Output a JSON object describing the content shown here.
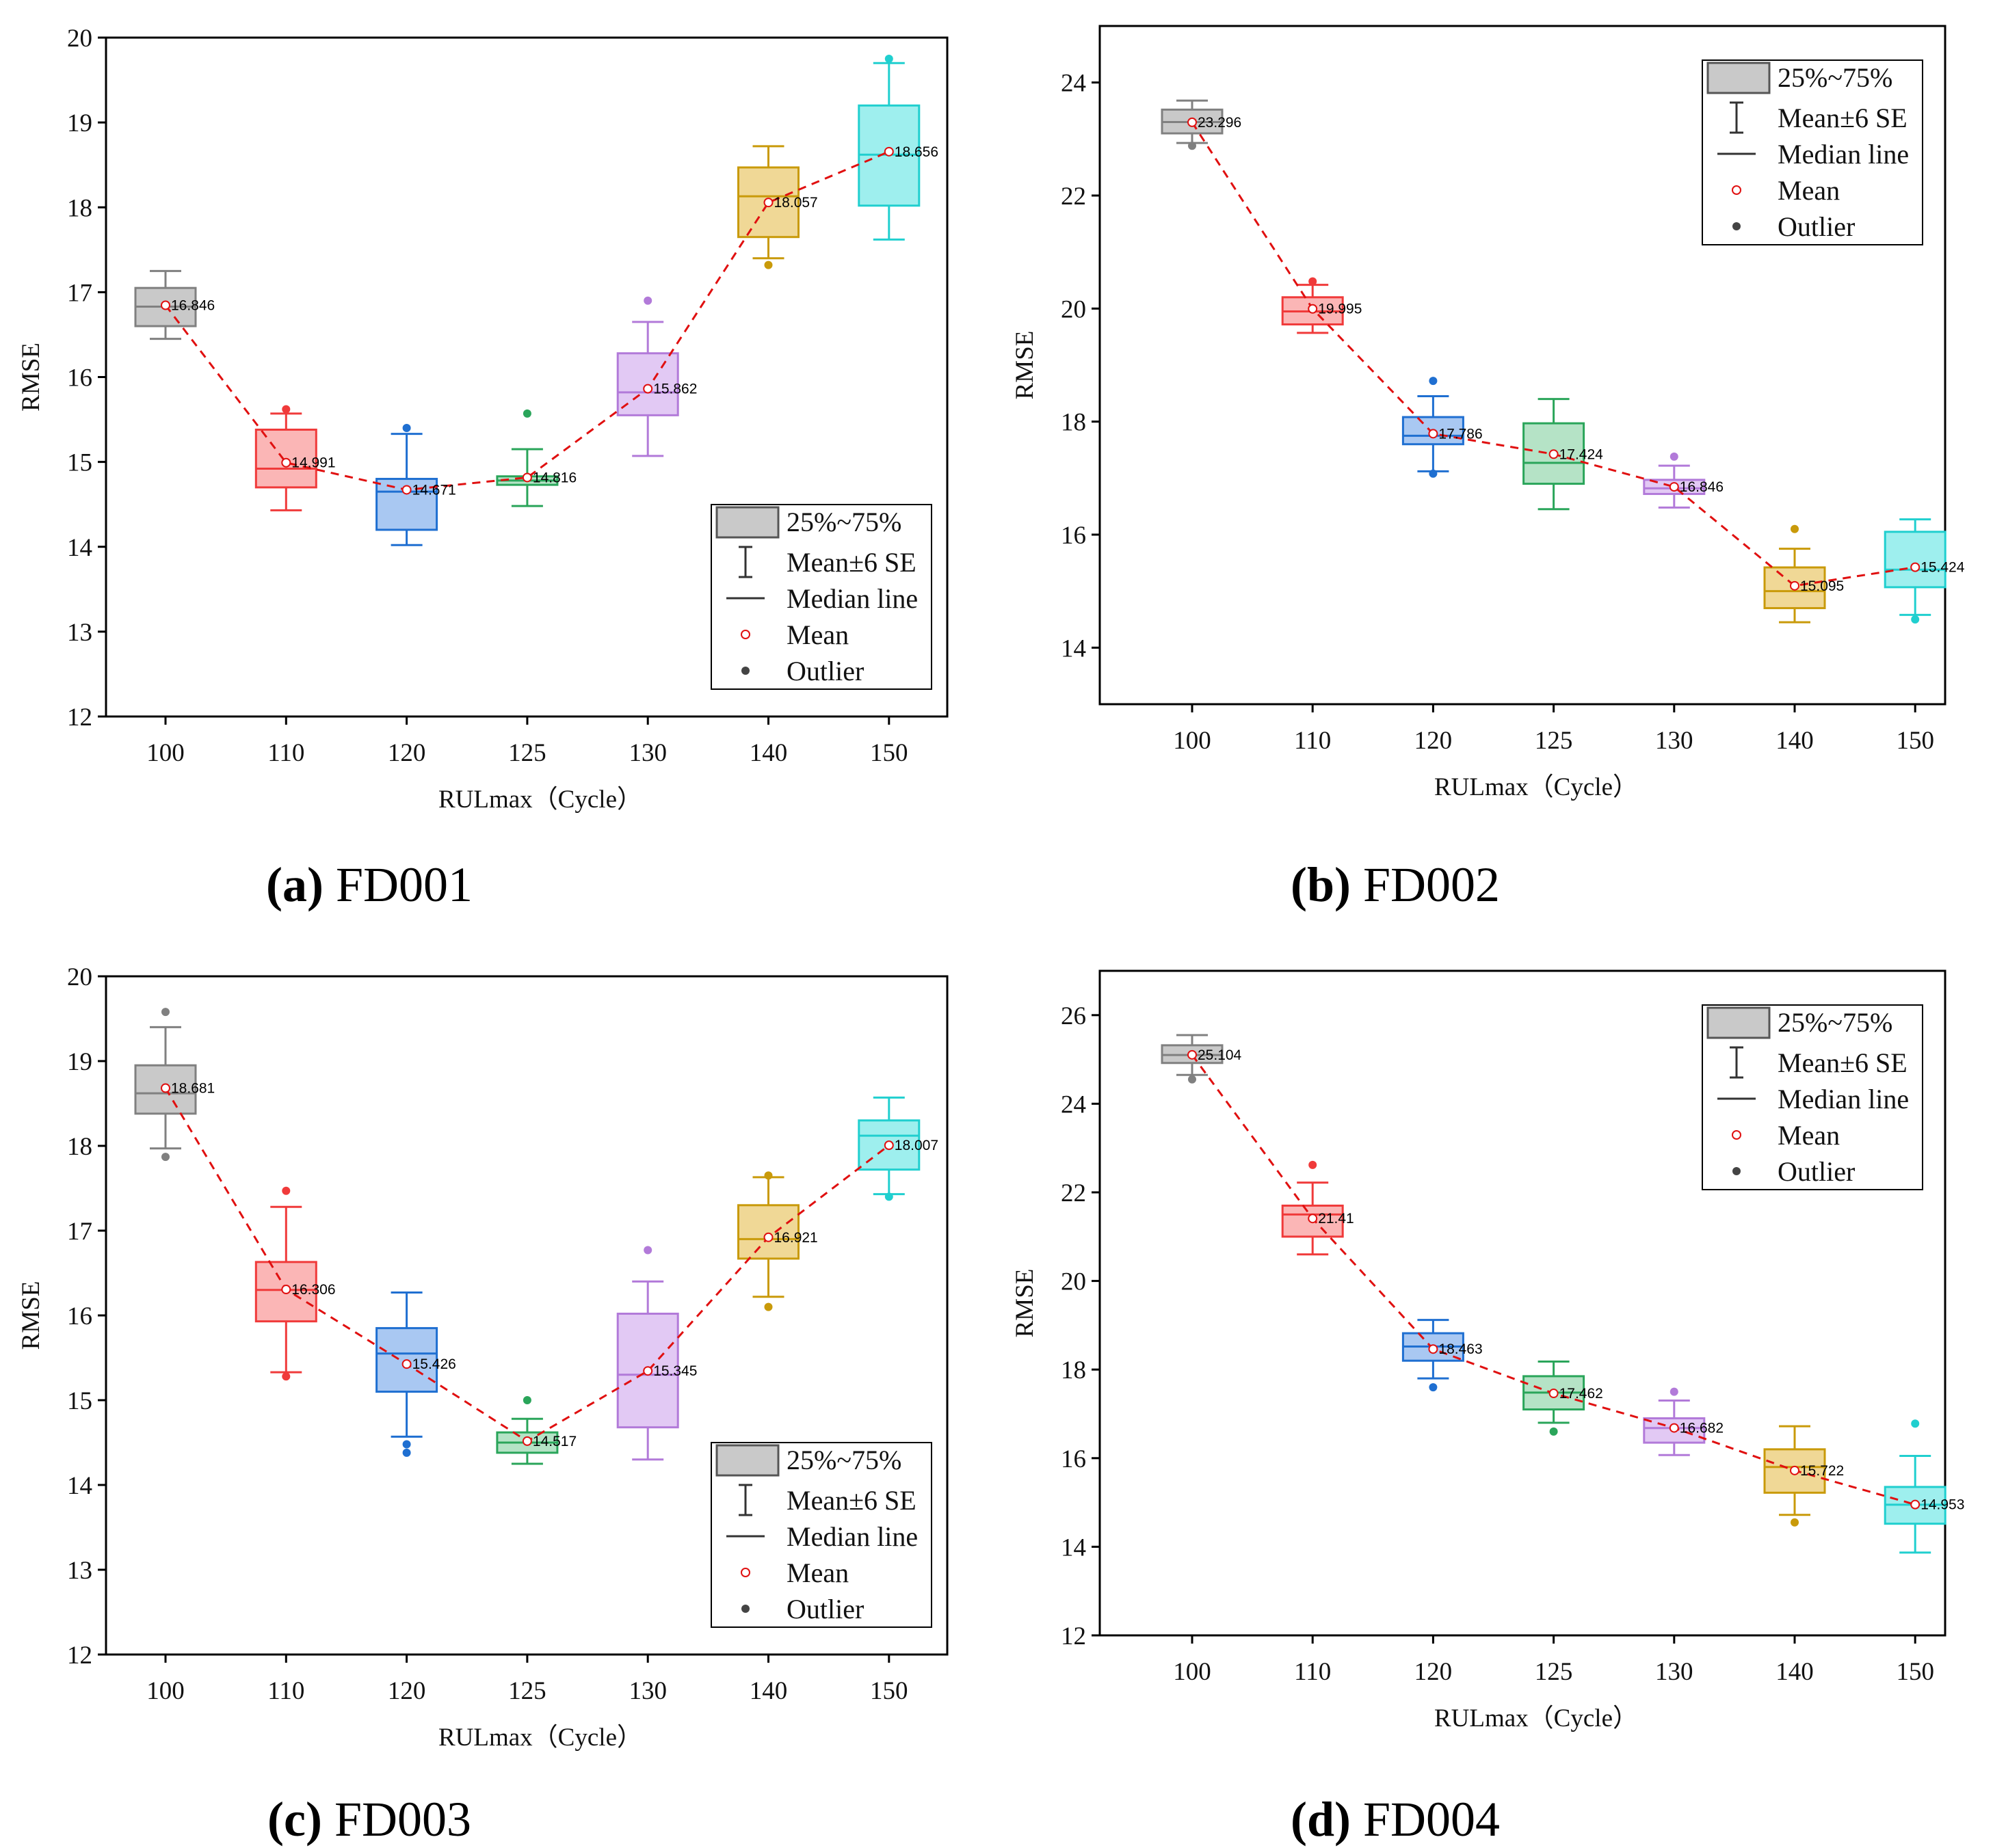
{
  "figure": {
    "legend_items": [
      {
        "key": "box",
        "label": "25%~75%"
      },
      {
        "key": "whisker",
        "label": "Mean±6 SE"
      },
      {
        "key": "median",
        "label": "Median line"
      },
      {
        "key": "mean",
        "label": "Mean"
      },
      {
        "key": "outlier",
        "label": "Outlier"
      }
    ],
    "colors": [
      "#808080",
      "#f03a3a",
      "#1f6fd1",
      "#2aa55a",
      "#b27ad9",
      "#c99a0a",
      "#20cfcf"
    ],
    "fills": [
      "#c9c9c9",
      "#fbb6b6",
      "#a9c8f2",
      "#b5e3c6",
      "#e2c9f4",
      "#f0d896",
      "#9eefee"
    ],
    "mean_line_color": "#e01010"
  },
  "chart_data": [
    {
      "type": "box",
      "id": "a",
      "caption_letter": "(a)",
      "caption_name": "FD001",
      "title": "",
      "xlabel": "RULmax（Cycle）",
      "ylabel": "RMSE",
      "ylim": [
        12,
        20
      ],
      "yticks": [
        "12",
        "13",
        "14",
        "15",
        "16",
        "17",
        "18",
        "19",
        "20"
      ],
      "legend_position": "bottom-right",
      "categories": [
        "100",
        "110",
        "120",
        "125",
        "130",
        "140",
        "150"
      ],
      "boxes": [
        {
          "whisker_low": 16.45,
          "q1": 16.6,
          "median": 16.83,
          "q3": 17.05,
          "whisker_high": 17.25,
          "mean": 16.846,
          "mean_label": "16.846",
          "outliers": []
        },
        {
          "whisker_low": 14.43,
          "q1": 14.7,
          "median": 14.92,
          "q3": 15.38,
          "whisker_high": 15.57,
          "mean": 14.991,
          "mean_label": "14.991",
          "outliers": [
            15.62
          ]
        },
        {
          "whisker_low": 14.02,
          "q1": 14.2,
          "median": 14.65,
          "q3": 14.8,
          "whisker_high": 15.33,
          "mean": 14.671,
          "mean_label": "14.671",
          "outliers": [
            15.4
          ]
        },
        {
          "whisker_low": 14.48,
          "q1": 14.73,
          "median": 14.78,
          "q3": 14.83,
          "whisker_high": 15.15,
          "mean": 14.816,
          "mean_label": "14.816",
          "outliers": [
            15.57
          ]
        },
        {
          "whisker_low": 15.07,
          "q1": 15.55,
          "median": 15.82,
          "q3": 16.28,
          "whisker_high": 16.65,
          "mean": 15.862,
          "mean_label": "15.862",
          "outliers": [
            16.9
          ]
        },
        {
          "whisker_low": 17.4,
          "q1": 17.65,
          "median": 18.13,
          "q3": 18.47,
          "whisker_high": 18.72,
          "mean": 18.057,
          "mean_label": "18.057",
          "outliers": [
            17.32
          ]
        },
        {
          "whisker_low": 17.62,
          "q1": 18.02,
          "median": 18.62,
          "q3": 19.2,
          "whisker_high": 19.7,
          "mean": 18.656,
          "mean_label": "18.656",
          "outliers": [
            19.75
          ]
        }
      ]
    },
    {
      "type": "box",
      "id": "b",
      "caption_letter": "(b)",
      "caption_name": "FD002",
      "title": "",
      "xlabel": "RULmax（Cycle）",
      "ylabel": "RMSE",
      "ylim": [
        13,
        25
      ],
      "yticks": [
        "14",
        "16",
        "18",
        "20",
        "22",
        "24"
      ],
      "legend_position": "top-right",
      "categories": [
        "100",
        "110",
        "120",
        "125",
        "130",
        "140",
        "150"
      ],
      "boxes": [
        {
          "whisker_low": 22.93,
          "q1": 23.1,
          "median": 23.3,
          "q3": 23.52,
          "whisker_high": 23.68,
          "mean": 23.296,
          "mean_label": "23.296",
          "outliers": [
            22.88
          ]
        },
        {
          "whisker_low": 19.57,
          "q1": 19.72,
          "median": 19.95,
          "q3": 20.2,
          "whisker_high": 20.42,
          "mean": 19.995,
          "mean_label": "19.995",
          "outliers": [
            20.48
          ]
        },
        {
          "whisker_low": 17.12,
          "q1": 17.6,
          "median": 17.75,
          "q3": 18.08,
          "whisker_high": 18.45,
          "mean": 17.786,
          "mean_label": "17.786",
          "outliers": [
            18.72,
            17.08
          ]
        },
        {
          "whisker_low": 16.45,
          "q1": 16.9,
          "median": 17.27,
          "q3": 17.97,
          "whisker_high": 18.4,
          "mean": 17.424,
          "mean_label": "17.424",
          "outliers": []
        },
        {
          "whisker_low": 16.48,
          "q1": 16.72,
          "median": 16.82,
          "q3": 16.97,
          "whisker_high": 17.22,
          "mean": 16.846,
          "mean_label": "16.846",
          "outliers": [
            17.38
          ]
        },
        {
          "whisker_low": 14.45,
          "q1": 14.7,
          "median": 15.0,
          "q3": 15.42,
          "whisker_high": 15.75,
          "mean": 15.095,
          "mean_label": "15.095",
          "outliers": [
            16.1
          ]
        },
        {
          "whisker_low": 14.58,
          "q1": 15.07,
          "median": 15.38,
          "q3": 16.05,
          "whisker_high": 16.27,
          "mean": 15.424,
          "mean_label": "15.424",
          "outliers": [
            14.5
          ]
        }
      ]
    },
    {
      "type": "box",
      "id": "c",
      "caption_letter": "(c)",
      "caption_name": "FD003",
      "title": "",
      "xlabel": "RULmax（Cycle）",
      "ylabel": "RMSE",
      "ylim": [
        12,
        20
      ],
      "yticks": [
        "12",
        "13",
        "14",
        "15",
        "16",
        "17",
        "18",
        "19",
        "20"
      ],
      "legend_position": "bottom-right",
      "categories": [
        "100",
        "110",
        "120",
        "125",
        "130",
        "140",
        "150"
      ],
      "boxes": [
        {
          "whisker_low": 17.97,
          "q1": 18.38,
          "median": 18.62,
          "q3": 18.95,
          "whisker_high": 19.4,
          "mean": 18.681,
          "mean_label": "18.681",
          "outliers": [
            19.58,
            17.87
          ]
        },
        {
          "whisker_low": 15.33,
          "q1": 15.93,
          "median": 16.3,
          "q3": 16.63,
          "whisker_high": 17.28,
          "mean": 16.306,
          "mean_label": "16.306",
          "outliers": [
            17.47,
            15.28
          ]
        },
        {
          "whisker_low": 14.57,
          "q1": 15.1,
          "median": 15.55,
          "q3": 15.85,
          "whisker_high": 16.27,
          "mean": 15.426,
          "mean_label": "15.426",
          "outliers": [
            14.48,
            14.38
          ]
        },
        {
          "whisker_low": 14.25,
          "q1": 14.38,
          "median": 14.5,
          "q3": 14.62,
          "whisker_high": 14.78,
          "mean": 14.517,
          "mean_label": "14.517",
          "outliers": [
            15.0
          ]
        },
        {
          "whisker_low": 14.3,
          "q1": 14.68,
          "median": 15.3,
          "q3": 16.02,
          "whisker_high": 16.4,
          "mean": 15.345,
          "mean_label": "15.345",
          "outliers": [
            16.77
          ]
        },
        {
          "whisker_low": 16.22,
          "q1": 16.67,
          "median": 16.9,
          "q3": 17.3,
          "whisker_high": 17.63,
          "mean": 16.921,
          "mean_label": "16.921",
          "outliers": [
            17.65,
            16.1
          ]
        },
        {
          "whisker_low": 17.43,
          "q1": 17.72,
          "median": 18.12,
          "q3": 18.3,
          "whisker_high": 18.57,
          "mean": 18.007,
          "mean_label": "18.007",
          "outliers": [
            17.4
          ]
        }
      ]
    },
    {
      "type": "box",
      "id": "d",
      "caption_letter": "(d)",
      "caption_name": "FD004",
      "title": "",
      "xlabel": "RULmax（Cycle）",
      "ylabel": "RMSE",
      "ylim": [
        12,
        27
      ],
      "yticks": [
        "12",
        "14",
        "16",
        "18",
        "20",
        "22",
        "24",
        "26"
      ],
      "legend_position": "top-right",
      "categories": [
        "100",
        "110",
        "120",
        "125",
        "130",
        "140",
        "150"
      ],
      "boxes": [
        {
          "whisker_low": 24.65,
          "q1": 24.92,
          "median": 25.1,
          "q3": 25.32,
          "whisker_high": 25.55,
          "mean": 25.104,
          "mean_label": "25.104",
          "outliers": [
            24.55
          ]
        },
        {
          "whisker_low": 20.6,
          "q1": 21.0,
          "median": 21.5,
          "q3": 21.7,
          "whisker_high": 22.22,
          "mean": 21.41,
          "mean_label": "21.41",
          "outliers": [
            22.62
          ]
        },
        {
          "whisker_low": 17.8,
          "q1": 18.2,
          "median": 18.52,
          "q3": 18.82,
          "whisker_high": 19.12,
          "mean": 18.463,
          "mean_label": "18.463",
          "outliers": [
            17.6
          ]
        },
        {
          "whisker_low": 16.8,
          "q1": 17.1,
          "median": 17.48,
          "q3": 17.85,
          "whisker_high": 18.18,
          "mean": 17.462,
          "mean_label": "17.462",
          "outliers": [
            16.6
          ]
        },
        {
          "whisker_low": 16.07,
          "q1": 16.35,
          "median": 16.68,
          "q3": 16.9,
          "whisker_high": 17.3,
          "mean": 16.682,
          "mean_label": "16.682",
          "outliers": [
            17.5
          ]
        },
        {
          "whisker_low": 14.72,
          "q1": 15.22,
          "median": 15.8,
          "q3": 16.2,
          "whisker_high": 16.72,
          "mean": 15.722,
          "mean_label": "15.722",
          "outliers": [
            14.55
          ]
        },
        {
          "whisker_low": 13.87,
          "q1": 14.52,
          "median": 14.95,
          "q3": 15.35,
          "whisker_high": 16.05,
          "mean": 14.953,
          "mean_label": "14.953",
          "outliers": [
            16.78
          ]
        }
      ]
    }
  ]
}
